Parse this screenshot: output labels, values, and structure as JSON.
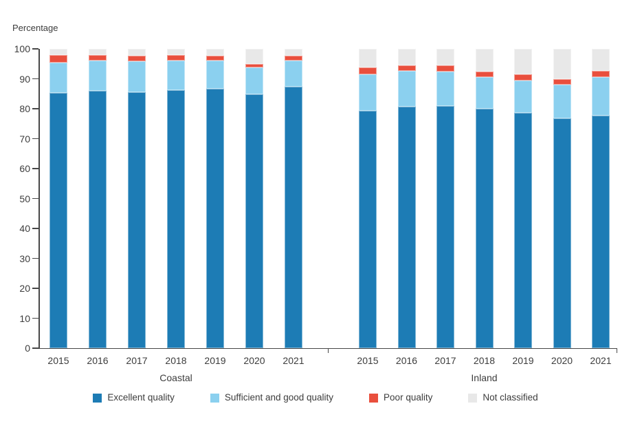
{
  "page": {
    "background": "#ffffff",
    "text_color": "#3c3c3c",
    "axis_color": "#474747"
  },
  "chart_data": {
    "type": "bar",
    "stacked": true,
    "orientation": "vertical",
    "axis_unit_label": "Percentage",
    "ylim": [
      0,
      100
    ],
    "yticks": [
      0,
      10,
      20,
      30,
      40,
      50,
      60,
      70,
      80,
      90,
      100
    ],
    "grid": "off",
    "groups": [
      "Coastal",
      "Inland"
    ],
    "categories": [
      "2015",
      "2016",
      "2017",
      "2018",
      "2019",
      "2020",
      "2021"
    ],
    "legend_position": "bottom",
    "series": [
      {
        "id": "excellent",
        "name": "Excellent quality",
        "color": "#1d7cb5",
        "values": [
          [
            85.3,
            86.0,
            85.6,
            86.2,
            86.6,
            84.8,
            87.3
          ],
          [
            79.4,
            80.7,
            81.0,
            79.9,
            78.6,
            76.8,
            77.8
          ]
        ]
      },
      {
        "id": "sufficient-good",
        "name": "Sufficient and good quality",
        "color": "#8bd0ef",
        "values": [
          [
            10.2,
            10.0,
            10.3,
            9.9,
            9.6,
            8.9,
            8.9
          ],
          [
            12.2,
            11.9,
            11.4,
            10.6,
            10.9,
            11.2,
            12.7
          ]
        ]
      },
      {
        "id": "poor",
        "name": "Poor quality",
        "color": "#e94f3d",
        "values": [
          [
            2.5,
            2.0,
            1.8,
            1.8,
            1.5,
            1.2,
            1.5
          ],
          [
            2.2,
            1.8,
            2.2,
            2.0,
            2.1,
            2.0,
            2.1
          ]
        ]
      },
      {
        "id": "not-classified",
        "name": "Not classified",
        "color": "#e8e8e8",
        "values": [
          [
            2.0,
            2.0,
            2.3,
            2.1,
            2.3,
            5.1,
            2.3
          ],
          [
            6.2,
            5.6,
            5.4,
            7.5,
            8.4,
            10.0,
            7.4
          ]
        ]
      }
    ]
  }
}
